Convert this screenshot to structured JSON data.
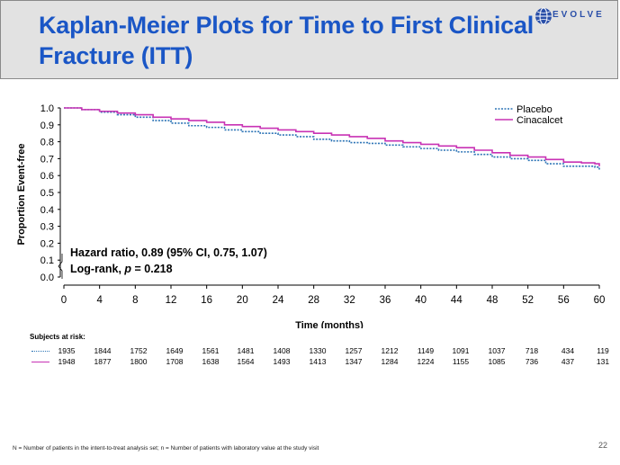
{
  "slide": {
    "title": "Kaplan-Meier Plots for Time to First Clinical Fracture (ITT)",
    "logo_text": "EVOLVE",
    "footnote": "N = Number of patients in the intent-to-treat analysis set; n = Number of patients with laboratory value at the study visit",
    "page_number": "22"
  },
  "colors": {
    "title": "#1a56c6",
    "placebo": "#2e75b6",
    "cinacalcet": "#c832b4"
  },
  "chart_data": {
    "type": "line",
    "title": "Kaplan-Meier Plots for Time to First Clinical Fracture (ITT)",
    "xlabel": "Time (months)",
    "ylabel": "Proportion Event-free",
    "xlim": [
      0,
      60
    ],
    "ylim": [
      0,
      1.0
    ],
    "x_ticks": [
      0,
      4,
      8,
      12,
      16,
      20,
      24,
      28,
      32,
      36,
      40,
      44,
      48,
      52,
      56,
      60
    ],
    "y_ticks": [
      "0.0",
      "0.1",
      "0.2",
      "0.3",
      "0.4",
      "0.5",
      "0.6",
      "0.7",
      "0.8",
      "0.9",
      "1.0"
    ],
    "y_axis_break": true,
    "legend_position": "top-right",
    "annotations": {
      "hazard_ratio": "Hazard ratio, 0.89 (95% CI, 0.75, 1.07)",
      "log_rank_prefix": "Log-rank, ",
      "log_rank_p": "p",
      "log_rank_suffix": " = 0.218"
    },
    "series": [
      {
        "name": "Placebo",
        "style": "dotted",
        "x": [
          0,
          2,
          4,
          6,
          8,
          10,
          12,
          14,
          16,
          18,
          20,
          22,
          24,
          26,
          28,
          30,
          32,
          34,
          36,
          38,
          40,
          42,
          44,
          46,
          48,
          50,
          52,
          54,
          56,
          58,
          59.5,
          60
        ],
        "y": [
          1.0,
          0.99,
          0.975,
          0.96,
          0.945,
          0.925,
          0.91,
          0.895,
          0.885,
          0.87,
          0.86,
          0.85,
          0.84,
          0.83,
          0.815,
          0.805,
          0.795,
          0.79,
          0.78,
          0.77,
          0.76,
          0.75,
          0.74,
          0.725,
          0.71,
          0.7,
          0.69,
          0.67,
          0.655,
          0.655,
          0.65,
          0.63
        ]
      },
      {
        "name": "Cinacalcet",
        "style": "solid",
        "x": [
          0,
          2,
          4,
          6,
          8,
          10,
          12,
          14,
          16,
          18,
          20,
          22,
          24,
          26,
          28,
          30,
          32,
          34,
          36,
          38,
          40,
          42,
          44,
          46,
          48,
          50,
          52,
          54,
          56,
          58,
          59.5,
          60
        ],
        "y": [
          1.0,
          0.99,
          0.98,
          0.97,
          0.96,
          0.945,
          0.935,
          0.925,
          0.915,
          0.9,
          0.89,
          0.88,
          0.87,
          0.86,
          0.85,
          0.84,
          0.83,
          0.82,
          0.805,
          0.795,
          0.785,
          0.775,
          0.765,
          0.75,
          0.735,
          0.72,
          0.71,
          0.695,
          0.68,
          0.675,
          0.67,
          0.655
        ]
      }
    ],
    "risk_table": {
      "title": "Subjects at risk:",
      "rows": [
        {
          "name": "Placebo",
          "values": [
            "1935",
            "1844",
            "1752",
            "1649",
            "1561",
            "1481",
            "1408",
            "1330",
            "1257",
            "1212",
            "1149",
            "1091",
            "1037",
            "718",
            "434",
            "119"
          ]
        },
        {
          "name": "Cinacalcet",
          "values": [
            "1948",
            "1877",
            "1800",
            "1708",
            "1638",
            "1564",
            "1493",
            "1413",
            "1347",
            "1284",
            "1224",
            "1155",
            "1085",
            "736",
            "437",
            "131"
          ]
        }
      ]
    }
  }
}
